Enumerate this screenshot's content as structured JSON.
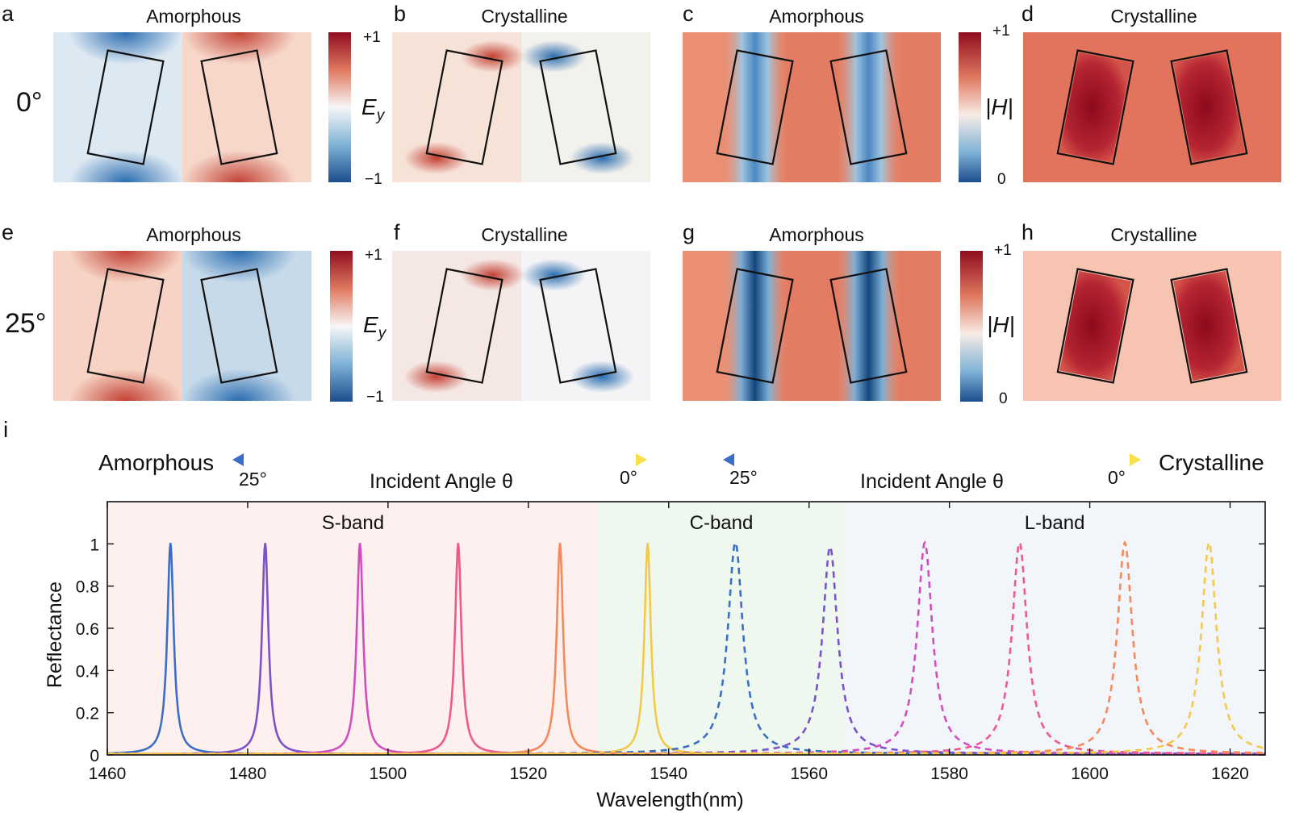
{
  "panels": [
    {
      "letter": "a",
      "title": "Amorphous",
      "field": "Ey",
      "row": 0,
      "col": 0
    },
    {
      "letter": "b",
      "title": "Crystalline",
      "field": "Ey",
      "row": 0,
      "col": 1
    },
    {
      "letter": "c",
      "title": "Amorphous",
      "field": "H",
      "row": 0,
      "col": 2
    },
    {
      "letter": "d",
      "title": "Crystalline",
      "field": "H",
      "row": 0,
      "col": 3
    },
    {
      "letter": "e",
      "title": "Amorphous",
      "field": "Ey",
      "row": 1,
      "col": 0
    },
    {
      "letter": "f",
      "title": "Crystalline",
      "field": "Ey",
      "row": 1,
      "col": 1
    },
    {
      "letter": "g",
      "title": "Amorphous",
      "field": "H",
      "row": 1,
      "col": 2
    },
    {
      "letter": "h",
      "title": "Crystalline",
      "field": "H",
      "row": 1,
      "col": 3
    }
  ],
  "row_labels": [
    "0°",
    "25°"
  ],
  "colorbars": {
    "ey": {
      "label_main": "E",
      "label_sub": "y",
      "top": "+1",
      "bottom": "−1"
    },
    "h": {
      "label": "|H|",
      "top": "+1",
      "bottom": "0"
    }
  },
  "panel_i": {
    "letter": "i",
    "legend_left": {
      "label": "Amorphous",
      "start": "25°",
      "end": "0°",
      "caption": "Incident Angle θ",
      "style": "solid"
    },
    "legend_right": {
      "label": "Crystalline",
      "start": "25°",
      "end": "0°",
      "caption": "Incident Angle θ",
      "style": "dashed"
    },
    "bands": [
      {
        "label": "S-band",
        "from": 1460,
        "to": 1530,
        "color": "#fdf0ee"
      },
      {
        "label": "C-band",
        "from": 1530,
        "to": 1565,
        "color": "#eef8ee"
      },
      {
        "label": "L-band",
        "from": 1565,
        "to": 1625,
        "color": "#f2f5fa"
      }
    ]
  },
  "colors": {
    "angle_gradient": [
      "#3b6fc7",
      "#7b52c9",
      "#d14ec0",
      "#ee5a8e",
      "#f4895a",
      "#f5c84a"
    ],
    "diverging": [
      "#2b5aa3",
      "#9ec7e2",
      "#f7f7f7",
      "#f4a582",
      "#b2182b"
    ]
  },
  "chart_data": {
    "type": "line",
    "xlabel": "Wavelength(nm)",
    "ylabel": "Reflectance",
    "xlim": [
      1460,
      1625
    ],
    "ylim": [
      0,
      1.2
    ],
    "xticks": [
      1460,
      1480,
      1500,
      1520,
      1540,
      1560,
      1580,
      1600,
      1620
    ],
    "yticks": [
      0,
      0.2,
      0.4,
      0.6,
      0.8,
      1
    ],
    "ytick_labels": [
      "0",
      "0.2",
      "0.4",
      "0.6",
      "0.8",
      "1"
    ],
    "grid": false,
    "series": [
      {
        "phase": "amorphous",
        "center": 1469,
        "peak": 1.0,
        "width": 0.55,
        "color": "#3b6fc7",
        "dash": false
      },
      {
        "phase": "amorphous",
        "center": 1482.5,
        "peak": 1.0,
        "width": 0.55,
        "color": "#7b52c9",
        "dash": false
      },
      {
        "phase": "amorphous",
        "center": 1496,
        "peak": 1.0,
        "width": 0.55,
        "color": "#d14ec0",
        "dash": false
      },
      {
        "phase": "amorphous",
        "center": 1510,
        "peak": 1.0,
        "width": 0.55,
        "color": "#ee5a8e",
        "dash": false
      },
      {
        "phase": "amorphous",
        "center": 1524.5,
        "peak": 1.0,
        "width": 0.55,
        "color": "#f4895a",
        "dash": false
      },
      {
        "phase": "amorphous",
        "center": 1537,
        "peak": 1.0,
        "width": 0.55,
        "color": "#f5c84a",
        "dash": false
      },
      {
        "phase": "crystalline",
        "center": 1549.5,
        "peak": 1.0,
        "width": 1.3,
        "color": "#3b6fc7",
        "dash": true
      },
      {
        "phase": "crystalline",
        "center": 1563,
        "peak": 0.98,
        "width": 1.3,
        "color": "#7b52c9",
        "dash": true
      },
      {
        "phase": "crystalline",
        "center": 1576.5,
        "peak": 1.0,
        "width": 1.3,
        "color": "#d14ec0",
        "dash": true
      },
      {
        "phase": "crystalline",
        "center": 1590,
        "peak": 1.0,
        "width": 1.3,
        "color": "#ee5a8e",
        "dash": true
      },
      {
        "phase": "crystalline",
        "center": 1605,
        "peak": 1.0,
        "width": 1.3,
        "color": "#f4895a",
        "dash": true
      },
      {
        "phase": "crystalline",
        "center": 1617,
        "peak": 1.0,
        "width": 1.3,
        "color": "#f5c84a",
        "dash": true
      }
    ]
  }
}
